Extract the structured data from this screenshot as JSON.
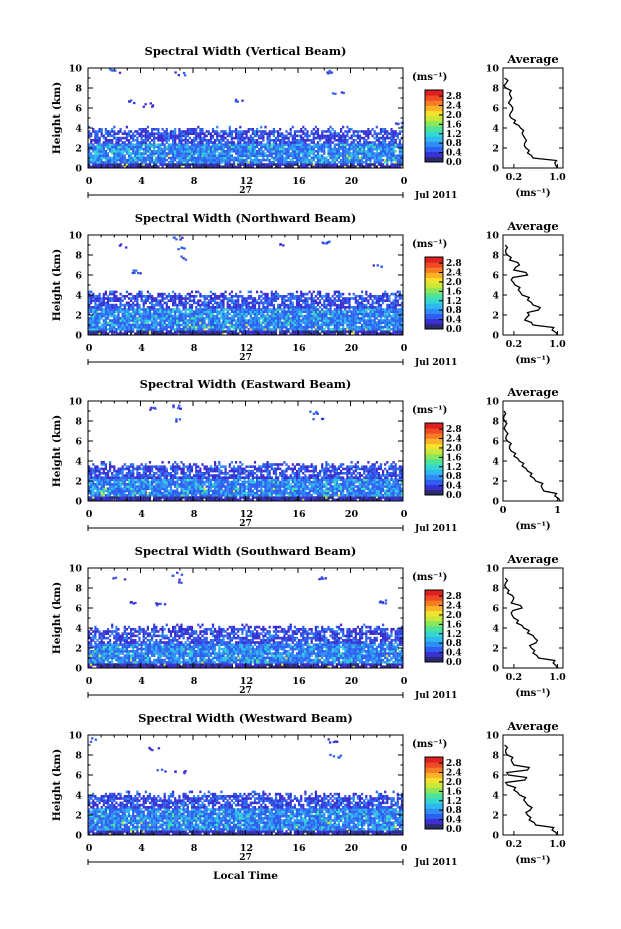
{
  "figure": {
    "xlabel": "Local Time",
    "date_label": "Jul 2011",
    "day_label": "27",
    "x_ticks": [
      "0",
      "4",
      "8",
      "12",
      "16",
      "20",
      "0"
    ],
    "y_ticks": [
      "0",
      "2",
      "4",
      "6",
      "8",
      "10"
    ],
    "ylabel": "Height (km)",
    "colorbar_unit": "(ms⁻¹)",
    "colorbar_ticks": [
      "0.0",
      "0.4",
      "0.8",
      "1.2",
      "1.6",
      "2.0",
      "2.4",
      "2.8"
    ],
    "avg_title": "Average",
    "avg_xlabel": "(ms⁻¹)",
    "colors": [
      "#2a2a6e",
      "#3a2fd0",
      "#2f5ff0",
      "#2f8df5",
      "#30b8f0",
      "#35d8d0",
      "#4de39a",
      "#8ae65a",
      "#c8e83a",
      "#f4e12c",
      "#fbb128",
      "#f77d25",
      "#ef4a23",
      "#df2020"
    ]
  },
  "chart_data": [
    {
      "type": "heatmap",
      "title": "Spectral Width (Vertical Beam)",
      "xlabel": "Local Time",
      "ylabel": "Height (km)",
      "xlim": [
        0,
        24
      ],
      "ylim": [
        0,
        10
      ],
      "clim": [
        0.0,
        3.0
      ],
      "layer_top_km": 4.0,
      "core_top_km": 2.3,
      "sparse_upper": [
        [
          2.0,
          9.6
        ],
        [
          3.0,
          6.5
        ],
        [
          4.5,
          6.2
        ],
        [
          7.0,
          9.3
        ],
        [
          11.5,
          6.7
        ],
        [
          18.5,
          9.5
        ],
        [
          19.0,
          7.5
        ],
        [
          23.5,
          4.3
        ]
      ],
      "average": {
        "title": "Average",
        "xlabel": "(ms⁻¹)",
        "xticks": [
          "0.2",
          "1.0"
        ],
        "xlim": [
          0,
          1.1
        ],
        "heights_km": [
          0.0,
          0.5,
          1.0,
          1.5,
          2.0,
          2.5,
          3.0,
          3.5,
          4.0,
          4.5,
          5.0,
          5.5,
          6.0,
          6.5,
          7.0,
          7.5,
          8.0,
          8.5,
          9.0
        ],
        "values": [
          1.0,
          0.95,
          0.55,
          0.45,
          0.42,
          0.4,
          0.4,
          0.35,
          0.32,
          0.2,
          0.15,
          0.14,
          0.18,
          0.1,
          0.16,
          0.12,
          0.05,
          0.06,
          0.03
        ]
      }
    },
    {
      "type": "heatmap",
      "title": "Spectral Width (Northward Beam)",
      "xlabel": "Local Time",
      "ylabel": "Height (km)",
      "xlim": [
        0,
        24
      ],
      "ylim": [
        0,
        10
      ],
      "clim": [
        0.0,
        3.0
      ],
      "layer_top_km": 4.3,
      "core_top_km": 2.5,
      "sparse_upper": [
        [
          2.5,
          8.8
        ],
        [
          3.5,
          6.2
        ],
        [
          6.8,
          9.5
        ],
        [
          6.9,
          8.5
        ],
        [
          7.0,
          7.6
        ],
        [
          14.5,
          9.0
        ],
        [
          18.0,
          9.2
        ],
        [
          22.0,
          6.7
        ]
      ],
      "average": {
        "title": "Average",
        "xlabel": "(ms⁻¹)",
        "xticks": [
          "0.2",
          "1.0"
        ],
        "xlim": [
          0,
          1.1
        ],
        "heights_km": [
          0.0,
          0.5,
          1.0,
          1.5,
          2.0,
          2.5,
          3.0,
          3.5,
          4.0,
          4.5,
          5.0,
          5.5,
          6.0,
          6.5,
          7.0,
          7.5,
          8.0,
          8.5,
          9.0
        ],
        "values": [
          1.0,
          0.9,
          0.55,
          0.4,
          0.48,
          0.65,
          0.55,
          0.45,
          0.35,
          0.28,
          0.22,
          0.15,
          0.45,
          0.2,
          0.3,
          0.12,
          0.08,
          0.05,
          0.04
        ]
      }
    },
    {
      "type": "heatmap",
      "title": "Spectral Width (Eastward Beam)",
      "xlabel": "Local Time",
      "ylabel": "Height (km)",
      "xlim": [
        0,
        24
      ],
      "ylim": [
        0,
        10
      ],
      "clim": [
        0.0,
        3.0
      ],
      "layer_top_km": 3.8,
      "core_top_km": 2.2,
      "sparse_upper": [
        [
          5.0,
          9.2
        ],
        [
          6.7,
          9.3
        ],
        [
          6.8,
          8.0
        ],
        [
          17.0,
          8.8
        ],
        [
          17.5,
          8.0
        ]
      ],
      "average": {
        "title": "Average",
        "xlabel": "(ms⁻¹)",
        "xticks": [
          "0",
          "1"
        ],
        "xlim": [
          0,
          1.1
        ],
        "heights_km": [
          0.0,
          0.5,
          1.0,
          1.5,
          2.0,
          2.5,
          3.0,
          3.5,
          4.0,
          4.5,
          5.0,
          5.5,
          6.0,
          6.5,
          7.0,
          7.5,
          8.0,
          8.5,
          9.0
        ],
        "values": [
          1.05,
          0.95,
          0.75,
          0.7,
          0.6,
          0.5,
          0.45,
          0.35,
          0.3,
          0.2,
          0.15,
          0.12,
          0.08,
          0.06,
          0.05,
          0.04,
          0.03,
          0.02,
          0.02
        ]
      }
    },
    {
      "type": "heatmap",
      "title": "Spectral Width (Southward Beam)",
      "xlabel": "Local Time",
      "ylabel": "Height (km)",
      "xlim": [
        0,
        24
      ],
      "ylim": [
        0,
        10
      ],
      "clim": [
        0.0,
        3.0
      ],
      "layer_top_km": 4.2,
      "core_top_km": 2.4,
      "sparse_upper": [
        [
          2.3,
          8.8
        ],
        [
          3.2,
          6.4
        ],
        [
          5.5,
          6.3
        ],
        [
          6.8,
          9.3
        ],
        [
          7.0,
          8.6
        ],
        [
          17.8,
          8.9
        ],
        [
          22.5,
          6.5
        ]
      ],
      "average": {
        "title": "Average",
        "xlabel": "(ms⁻¹)",
        "xticks": [
          "0.2",
          "1.0"
        ],
        "xlim": [
          0,
          1.1
        ],
        "heights_km": [
          0.0,
          0.5,
          1.0,
          1.5,
          2.0,
          2.5,
          3.0,
          3.5,
          4.0,
          4.5,
          5.0,
          5.5,
          6.0,
          6.5,
          7.0,
          7.5,
          8.0,
          8.5,
          9.0
        ],
        "values": [
          1.0,
          0.92,
          0.65,
          0.55,
          0.52,
          0.6,
          0.58,
          0.45,
          0.38,
          0.25,
          0.2,
          0.15,
          0.35,
          0.15,
          0.2,
          0.08,
          0.06,
          0.05,
          0.04
        ]
      }
    },
    {
      "type": "heatmap",
      "title": "Spectral Width (Westward Beam)",
      "xlabel": "Local Time",
      "ylabel": "Height (km)",
      "xlim": [
        0,
        24
      ],
      "ylim": [
        0,
        10
      ],
      "clim": [
        0.0,
        3.0
      ],
      "layer_top_km": 4.2,
      "core_top_km": 2.5,
      "sparse_upper": [
        [
          0.5,
          9.4
        ],
        [
          5.0,
          8.5
        ],
        [
          5.5,
          6.3
        ],
        [
          7.0,
          6.2
        ],
        [
          18.5,
          9.3
        ],
        [
          18.8,
          7.8
        ]
      ],
      "average": {
        "title": "Average",
        "xlabel": "(ms⁻¹)",
        "xticks": [
          "0.2",
          "1.0"
        ],
        "xlim": [
          0,
          1.1
        ],
        "heights_km": [
          0.0,
          0.5,
          1.0,
          1.5,
          2.0,
          2.5,
          3.0,
          3.5,
          4.0,
          4.5,
          5.0,
          5.5,
          6.0,
          6.5,
          7.0,
          7.5,
          8.0,
          8.5,
          9.0
        ],
        "values": [
          1.0,
          0.9,
          0.6,
          0.48,
          0.45,
          0.5,
          0.45,
          0.38,
          0.3,
          0.2,
          0.08,
          0.4,
          0.1,
          0.45,
          0.2,
          0.15,
          0.08,
          0.05,
          0.03
        ]
      }
    }
  ]
}
